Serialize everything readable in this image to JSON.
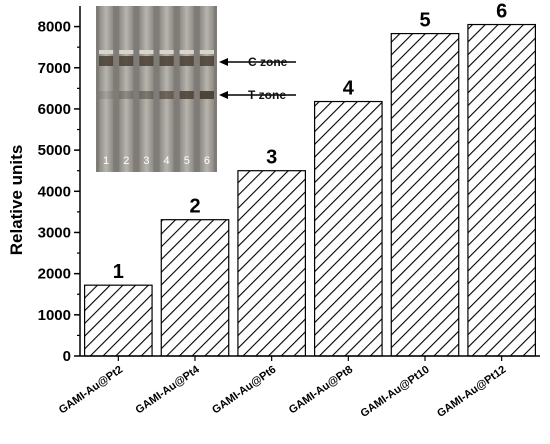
{
  "chart_data": {
    "type": "bar",
    "ylabel": "Relative units",
    "ylim": [
      0,
      8500
    ],
    "yticks": [
      0,
      1000,
      2000,
      3000,
      4000,
      5000,
      6000,
      7000,
      8000
    ],
    "categories": [
      "GAMI-Au@Pt2",
      "GAMI-Au@Pt4",
      "GAMI-Au@Pt6",
      "GAMI-Au@Pt8",
      "GAMI-Au@Pt10",
      "GAMI-Au@Pt12"
    ],
    "values": [
      1720,
      3310,
      4500,
      6180,
      7830,
      8050
    ],
    "bar_labels": [
      "1",
      "2",
      "3",
      "4",
      "5",
      "6"
    ],
    "bar_fill": "diagonal hatch",
    "inset": {
      "lane_labels": [
        "1",
        "2",
        "3",
        "4",
        "5",
        "6"
      ],
      "annotations": [
        "C zone",
        "T zone"
      ]
    }
  }
}
